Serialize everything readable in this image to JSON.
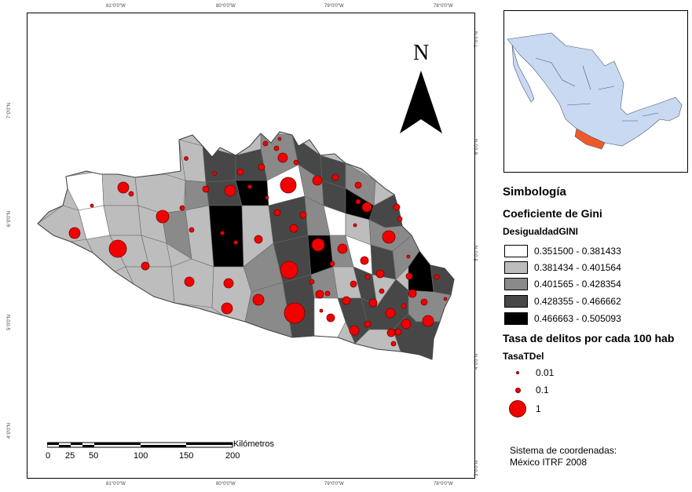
{
  "map": {
    "top_ticks": [
      "81°0'0\"W",
      "80°0'0\"W",
      "79°0'0\"W",
      "78°0'0\"W"
    ],
    "bottom_ticks": [
      "81°0'0\"W",
      "80°0'0\"W",
      "79°0'0\"W",
      "78°0'0\"W"
    ],
    "left_ticks": [
      "7°0'0\"N",
      "6°0'0\"N",
      "5°0'0\"N",
      "4°0'0\"N"
    ],
    "right_ticks": [
      "7°0'0\"N",
      "6°0'0\"N",
      "5°0'0\"N",
      "4°0'0\"N",
      "3°0'0\"N"
    ],
    "north_label": "N"
  },
  "scalebar": {
    "unit": "Kilómetros",
    "labels": [
      "0",
      "25",
      "50",
      "100",
      "150",
      "200"
    ]
  },
  "legend": {
    "title": "Simbología",
    "gini_title": "Coeficiente de Gini",
    "gini_field": "DesigualdadGINI",
    "classes": [
      {
        "label": "0.351500 - 0.381433",
        "color": "#ffffff"
      },
      {
        "label": "0.381434 - 0.401564",
        "color": "#bdbdbd"
      },
      {
        "label": "0.401565 - 0.428354",
        "color": "#8a8a8a"
      },
      {
        "label": "0.428355 - 0.466662",
        "color": "#474747"
      },
      {
        "label": "0.466663 - 0.505093",
        "color": "#000000"
      }
    ],
    "crime_title": "Tasa de delitos por cada 100 hab",
    "crime_field": "TasaTDel",
    "crime_classes": [
      {
        "label": "0.01"
      },
      {
        "label": "0.1"
      },
      {
        "label": "1"
      }
    ]
  },
  "coords": {
    "line1": "Sistema de coordenadas:",
    "line2": "México ITRF 2008"
  },
  "colors": {
    "points": "#f20000",
    "inset_country": "#c9d9f2",
    "inset_highlight": "#f05a28"
  }
}
